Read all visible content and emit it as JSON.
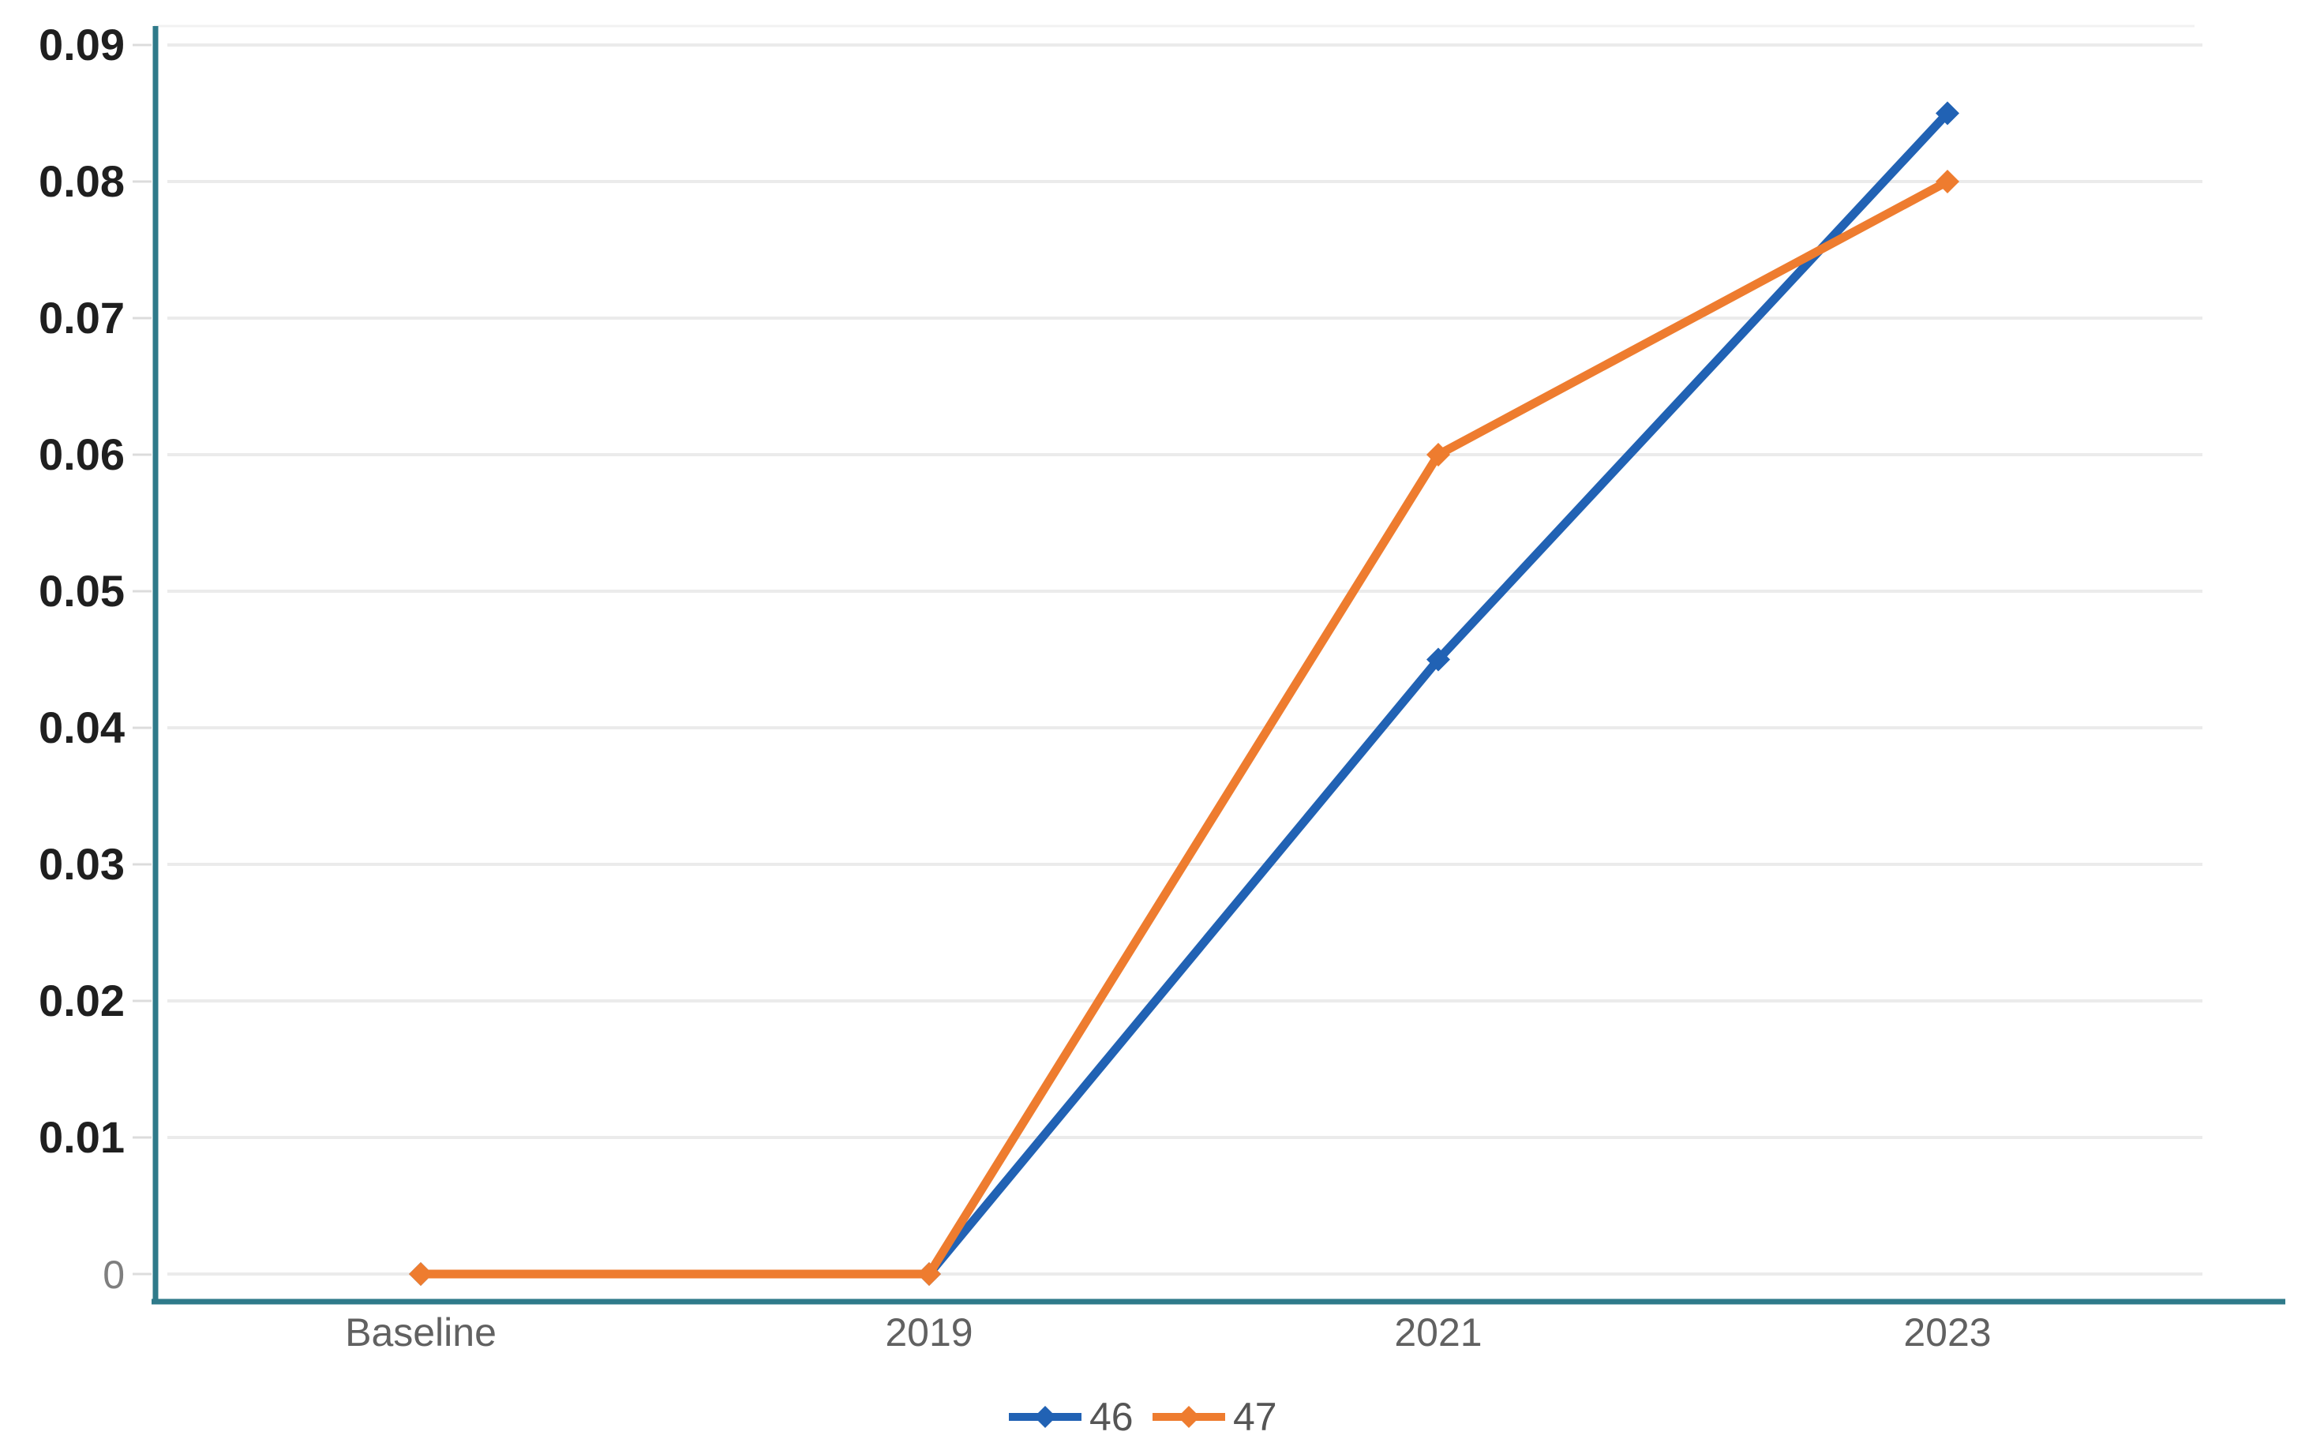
{
  "chart_data": {
    "type": "line",
    "title": "",
    "xlabel": "",
    "ylabel": "",
    "categories": [
      "Baseline",
      "2019",
      "2021",
      "2023"
    ],
    "series": [
      {
        "name": "46",
        "color": "#2162B4",
        "marker": "diamond",
        "values": [
          0,
          0,
          0.045,
          0.085
        ]
      },
      {
        "name": "47",
        "color": "#EE7C2F",
        "marker": "diamond",
        "values": [
          0,
          0,
          0.06,
          0.08
        ]
      }
    ],
    "ylim": [
      0,
      0.09
    ],
    "yticks": [
      0,
      0.01,
      0.02,
      0.03,
      0.04,
      0.05,
      0.06,
      0.07,
      0.08,
      0.09
    ],
    "ytick_labels": [
      "0",
      "0.01",
      "0.02",
      "0.03",
      "0.04",
      "0.05",
      "0.06",
      "0.07",
      "0.08",
      "0.09"
    ],
    "grid": true,
    "legend": {
      "position": "bottom-center",
      "entries": [
        "46",
        "47"
      ]
    }
  },
  "style": {
    "background": "#FFFFFF",
    "axis_color": "#2F7A8A",
    "gridline_color": "#EBEBEB",
    "plot_top_border_color": "#F2F2F2",
    "tick_mark_color": "#DCDCDC",
    "ytick_label_color": "#1F1F1F",
    "zero_label_color": "#7F7F7F",
    "xtick_label_color": "#616161",
    "legend_text_color": "#555555"
  }
}
